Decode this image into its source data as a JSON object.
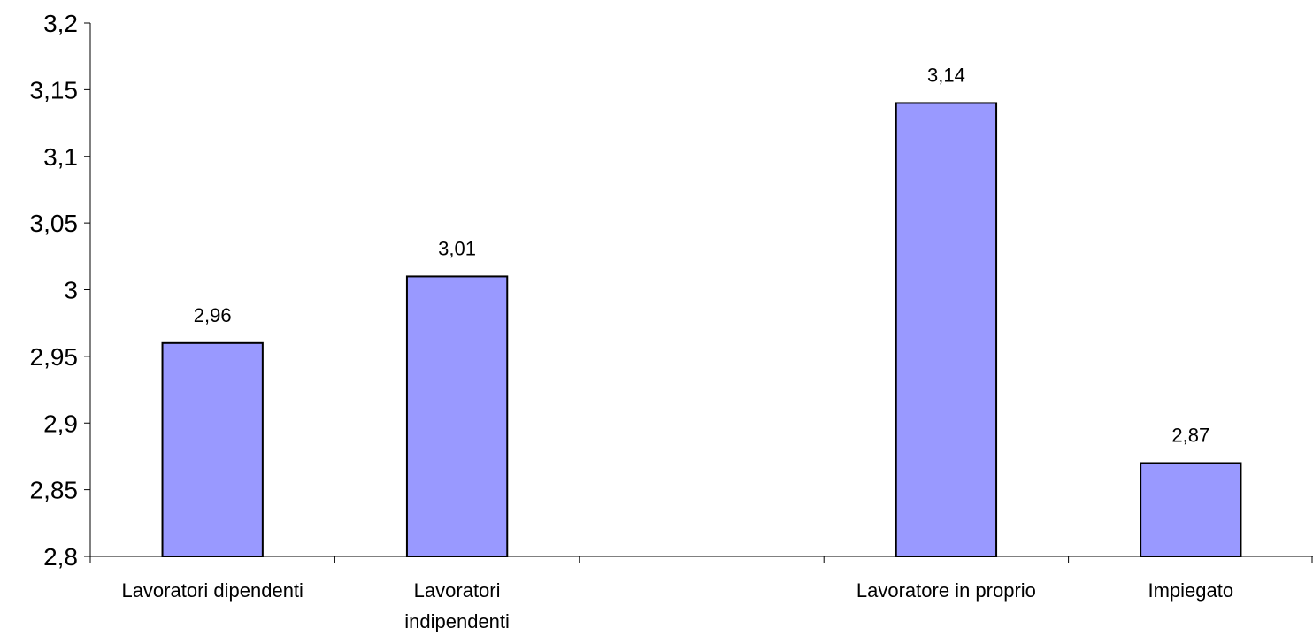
{
  "chart_data": {
    "type": "bar",
    "title": "",
    "xlabel": "",
    "ylabel": "",
    "ylim": [
      2.8,
      3.2
    ],
    "yticks": [
      2.8,
      2.85,
      2.9,
      2.95,
      3.0,
      3.05,
      3.1,
      3.15,
      3.2
    ],
    "ytick_labels": [
      "2,8",
      "2,85",
      "2,9",
      "2,95",
      "3",
      "3,05",
      "3,1",
      "3,15",
      "3,2"
    ],
    "grid": false,
    "legend": "none",
    "bar_color": "#9999ff",
    "bar_stroke": "#000000",
    "category_slots": 5,
    "categories": [
      {
        "slot": 0,
        "lines": [
          "Lavoratori dipendenti"
        ],
        "value": 2.96,
        "label": "2,96"
      },
      {
        "slot": 1,
        "lines": [
          "Lavoratori",
          "indipendenti"
        ],
        "value": 3.01,
        "label": "3,01"
      },
      {
        "slot": 3,
        "lines": [
          "Lavoratore in proprio"
        ],
        "value": 3.14,
        "label": "3,14"
      },
      {
        "slot": 4,
        "lines": [
          "Impiegato"
        ],
        "value": 2.87,
        "label": "2,87"
      }
    ]
  }
}
